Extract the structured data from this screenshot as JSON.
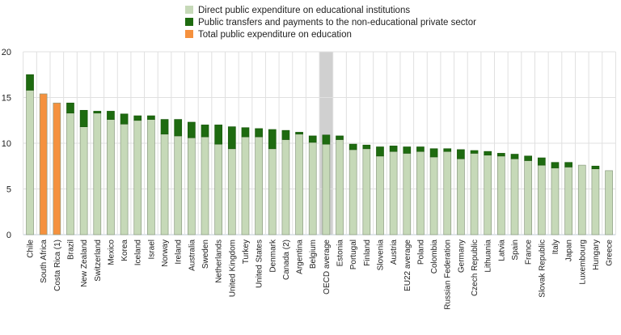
{
  "chart_data": {
    "type": "bar",
    "stacked": true,
    "title": "",
    "xlabel": "",
    "ylabel": "",
    "ylim": [
      0,
      20
    ],
    "yticks": [
      0,
      5,
      10,
      15,
      20
    ],
    "grid": true,
    "legend_position": "top-center",
    "highlight_category": "OECD average",
    "categories": [
      "Chile",
      "South Africa",
      "Costa Rica (1)",
      "Brazil",
      "New Zealand",
      "Switzerland",
      "Mexico",
      "Korea",
      "Iceland",
      "Israel",
      "Norway",
      "Ireland",
      "Australia",
      "Sweden",
      "Netherlands",
      "United Kingdom",
      "Turkey",
      "United States",
      "Denmark",
      "Canada (2)",
      "Argentina",
      "Belgium",
      "OECD average",
      "Estonia",
      "Portugal",
      "Finland",
      "Slovenia",
      "Austria",
      "EU22 average",
      "Poland",
      "Colombia",
      "Russian Federation",
      "Germany",
      "Czech Republic",
      "Lithuania",
      "Latvia",
      "Spain",
      "France",
      "Slovak Republic",
      "Italy",
      "Japan",
      "Luxembourg",
      "Hungary",
      "Greece"
    ],
    "series": [
      {
        "name": "Direct public expenditure on educational institutions",
        "color": "#c6d9b8",
        "values": [
          15.8,
          null,
          null,
          13.3,
          11.8,
          13.3,
          12.6,
          12.1,
          12.5,
          12.6,
          11.0,
          10.8,
          10.6,
          10.7,
          9.9,
          9.4,
          10.7,
          10.7,
          9.4,
          10.4,
          11.0,
          10.1,
          9.9,
          10.4,
          9.3,
          9.4,
          8.6,
          9.1,
          8.9,
          9.1,
          8.5,
          9.1,
          8.3,
          8.9,
          8.7,
          8.6,
          8.3,
          8.1,
          7.6,
          7.3,
          7.4,
          7.6,
          7.2,
          7.0
        ]
      },
      {
        "name": "Public transfers and payments to the non-educational private sector",
        "color": "#1e6b10",
        "values": [
          1.7,
          null,
          null,
          1.1,
          1.8,
          0.2,
          0.9,
          1.1,
          0.5,
          0.4,
          1.6,
          1.8,
          1.7,
          1.3,
          2.1,
          2.4,
          1.0,
          0.9,
          2.1,
          1.0,
          0.2,
          0.7,
          1.0,
          0.4,
          0.6,
          0.4,
          1.0,
          0.6,
          0.7,
          0.5,
          0.9,
          0.3,
          1.0,
          0.3,
          0.4,
          0.3,
          0.5,
          0.5,
          0.8,
          0.6,
          0.5,
          0.0,
          0.3,
          0.0
        ]
      },
      {
        "name": "Total public expenditure on education",
        "color": "#f5913e",
        "values": [
          null,
          15.4,
          14.4,
          null,
          null,
          null,
          null,
          null,
          null,
          null,
          null,
          null,
          null,
          null,
          null,
          null,
          null,
          null,
          null,
          null,
          null,
          null,
          null,
          null,
          null,
          null,
          null,
          null,
          null,
          null,
          null,
          null,
          null,
          null,
          null,
          null,
          null,
          null,
          null,
          null,
          null,
          null,
          null,
          null
        ]
      }
    ]
  }
}
